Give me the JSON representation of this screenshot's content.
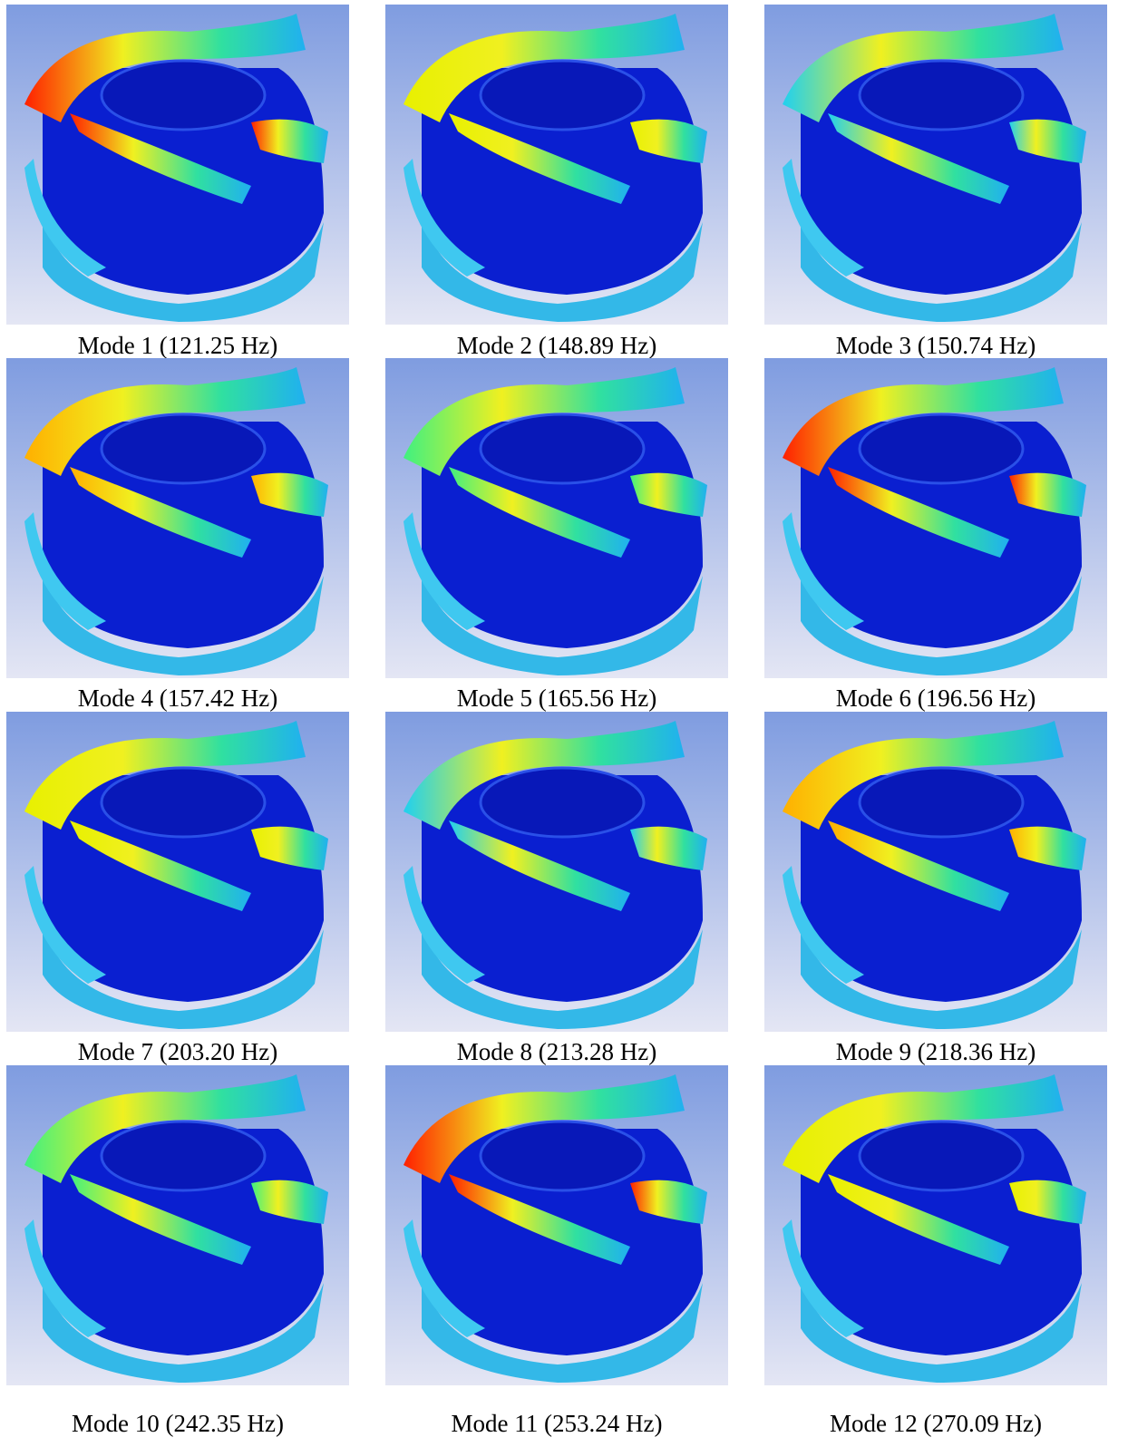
{
  "figure": {
    "panels": [
      {
        "caption": "Mode 1 (121.25 Hz)"
      },
      {
        "caption": "Mode 2 (148.89 Hz)"
      },
      {
        "caption": "Mode 3 (150.74 Hz)"
      },
      {
        "caption": "Mode 4 (157.42 Hz)"
      },
      {
        "caption": "Mode 5 (165.56 Hz)"
      },
      {
        "caption": "Mode 6 (196.56 Hz)"
      },
      {
        "caption": "Mode 7 (203.20 Hz)"
      },
      {
        "caption": "Mode 8 (213.28 Hz)"
      },
      {
        "caption": "Mode 9 (218.36 Hz)"
      },
      {
        "caption": "Mode 10 (242.35 Hz)"
      },
      {
        "caption": "Mode 11 (253.24 Hz)"
      },
      {
        "caption": "Mode 12 (270.09 Hz)"
      }
    ]
  }
}
